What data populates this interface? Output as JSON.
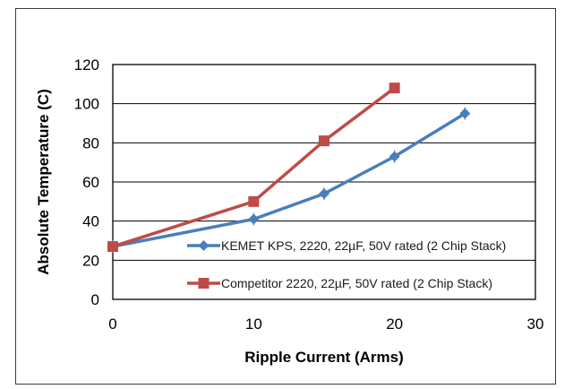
{
  "chart_data": {
    "type": "line",
    "title": "",
    "xlabel": "Ripple Current (Arms)",
    "ylabel": "Absolute Temperature (C)",
    "xlim": [
      0,
      30
    ],
    "ylim": [
      0,
      120
    ],
    "xticks": [
      0,
      10,
      20,
      30
    ],
    "yticks": [
      0,
      20,
      40,
      60,
      80,
      100,
      120
    ],
    "grid": "horizontal",
    "legend_position": "bottom-right inside plot",
    "series": [
      {
        "name": "KEMET KPS, 2220, 22µF, 50V rated (2 Chip Stack)",
        "color": "#4a7ebb",
        "marker": "diamond",
        "x": [
          0,
          10,
          15,
          20,
          25
        ],
        "y": [
          27,
          41,
          54,
          73,
          95
        ]
      },
      {
        "name": "Competitor 2220, 22µF, 50V rated (2 Chip Stack)",
        "color": "#be4b48",
        "marker": "square",
        "x": [
          0,
          10,
          15,
          20
        ],
        "y": [
          27,
          50,
          81,
          108
        ]
      }
    ]
  }
}
